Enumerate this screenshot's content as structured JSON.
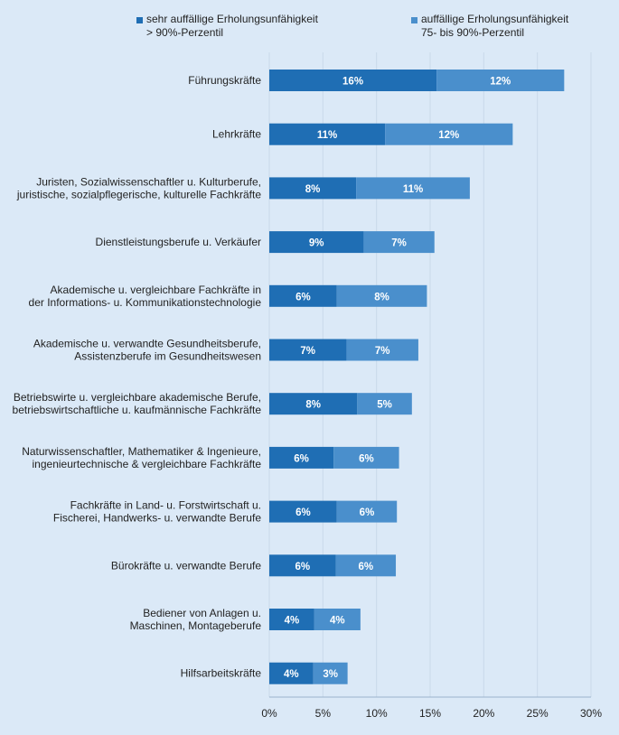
{
  "colors": {
    "background": "#dbe9f7",
    "series_dark": "#1f6eb4",
    "series_light": "#4a8fcc",
    "grid": "#c9d9ea",
    "text": "#222222"
  },
  "legend": [
    {
      "line1": "sehr auffällige Erholungsunfähigkeit",
      "line2": "> 90%-Perzentil"
    },
    {
      "line1": "auffällige Erholungsunfähigkeit",
      "line2": "75- bis 90%-Perzentil"
    }
  ],
  "chart_data": {
    "type": "bar",
    "orientation": "horizontal",
    "stacked": true,
    "categories": [
      [
        "Führungskräfte"
      ],
      [
        "Lehrkräfte"
      ],
      [
        "Juristen, Sozialwissenschaftler u. Kulturberufe,",
        "juristische, sozialpflegerische, kulturelle Fachkräfte"
      ],
      [
        "Dienstleistungsberufe u. Verkäufer"
      ],
      [
        "Akademische u. vergleichbare Fachkräfte in",
        "der Informations- u. Kommunikationstechnologie"
      ],
      [
        "Akademische u. verwandte Gesundheitsberufe,",
        "Assistenzberufe im Gesundheitswesen"
      ],
      [
        "Betriebswirte u. vergleichbare akademische Berufe,",
        "betriebswirtschaftliche u. kaufmännische Fachkräfte"
      ],
      [
        "Naturwissenschaftler, Mathematiker & Ingenieure,",
        "ingenieurtechnische & vergleichbare Fachkräfte"
      ],
      [
        "Fachkräfte in Land- u. Forstwirtschaft u.",
        "Fischerei, Handwerks- u. verwandte Berufe"
      ],
      [
        "Bürokräfte u. verwandte Berufe"
      ],
      [
        "Bediener von Anlagen u.",
        "Maschinen, Montageberufe"
      ],
      [
        "Hilfsarbeitskräfte"
      ]
    ],
    "series": [
      {
        "name": "sehr auffällige Erholungsunfähigkeit > 90%-Perzentil",
        "values": [
          15.6,
          10.8,
          8.1,
          8.8,
          6.3,
          7.2,
          8.2,
          6.0,
          6.3,
          6.2,
          4.2,
          4.1
        ],
        "labels": [
          "16%",
          "11%",
          "8%",
          "9%",
          "6%",
          "7%",
          "8%",
          "6%",
          "6%",
          "6%",
          "4%",
          "4%"
        ]
      },
      {
        "name": "auffällige Erholungsunfähigkeit 75- bis 90%-Perzentil",
        "values": [
          11.9,
          11.9,
          10.6,
          6.6,
          8.4,
          6.7,
          5.1,
          6.1,
          5.6,
          5.6,
          4.3,
          3.2
        ],
        "labels": [
          "12%",
          "12%",
          "11%",
          "7%",
          "8%",
          "7%",
          "5%",
          "6%",
          "6%",
          "6%",
          "4%",
          "3%"
        ]
      }
    ],
    "xlim": [
      0,
      30
    ],
    "xticks": [
      0,
      5,
      10,
      15,
      20,
      25,
      30
    ],
    "xtick_labels": [
      "0%",
      "5%",
      "10%",
      "15%",
      "20%",
      "25%",
      "30%"
    ],
    "grid": true,
    "legend_position": "top"
  }
}
